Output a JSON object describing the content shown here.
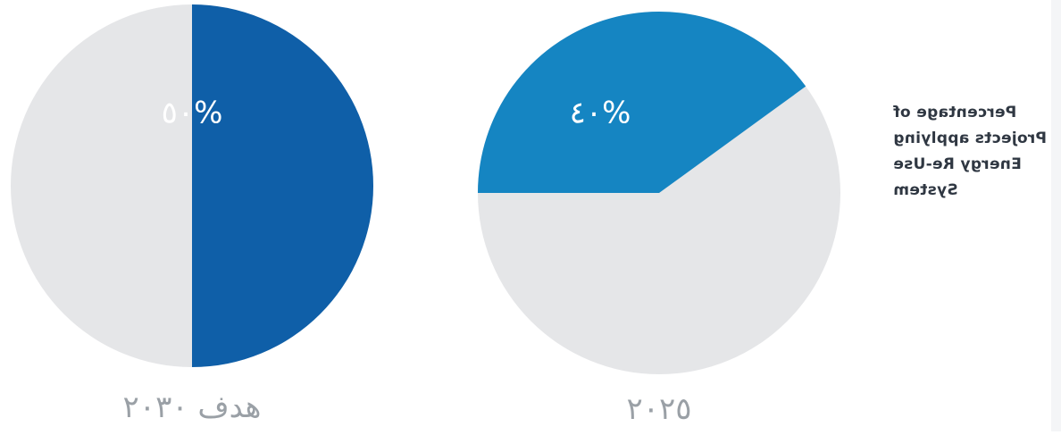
{
  "accent_colors": {
    "slice_2030": "#0f5fa8",
    "slice_2025": "#1585c2",
    "remainder": "#e5e6e8",
    "slice_text": "#ffffff",
    "caption_text": "#9aa0a6"
  },
  "side_label": {
    "lines": [
      "Percentage of",
      "Projects applying",
      "Energy Re-Use",
      "System"
    ]
  },
  "chart_data": [
    {
      "type": "pie",
      "caption": "هدف ٢٠٣٠",
      "slices": [
        {
          "label": "٥٠%",
          "value": 50
        },
        {
          "label": "",
          "value": 50
        }
      ]
    },
    {
      "type": "pie",
      "caption": "٢٠٢٥",
      "slices": [
        {
          "label": "٤٠%",
          "value": 40
        },
        {
          "label": "",
          "value": 60
        }
      ]
    }
  ]
}
